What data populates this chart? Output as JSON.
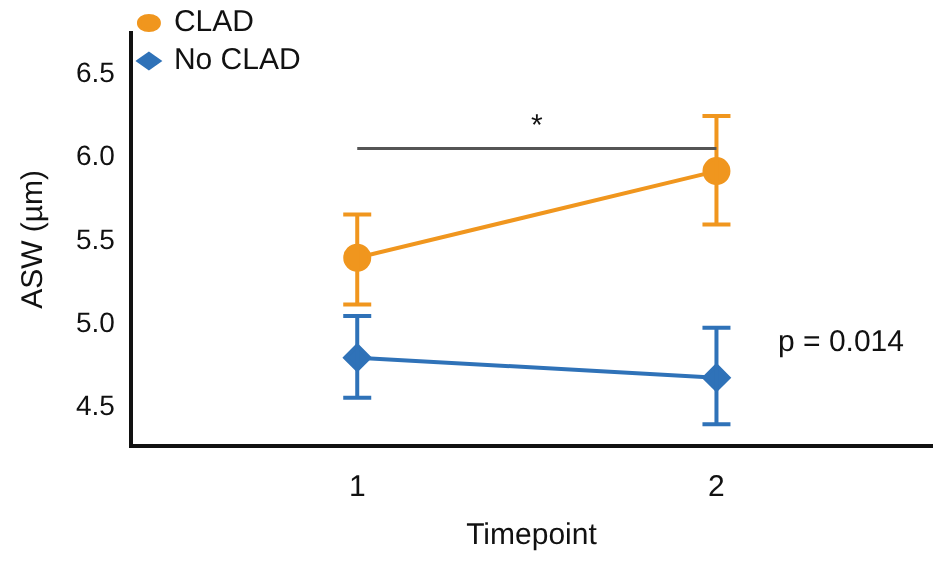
{
  "chart_data": {
    "type": "line",
    "xlabel": "Timepoint",
    "ylabel": "ASW (µm)",
    "x": [
      1,
      2
    ],
    "xlim": [
      0.37,
      2.6
    ],
    "xticks": [
      1,
      2
    ],
    "ylim": [
      4.27,
      6.75
    ],
    "yticks": [
      4.5,
      {
        "value": 5,
        "label": "5.0"
      },
      5.5,
      {
        "value": 6,
        "label": "6.0"
      },
      6.5
    ],
    "grid": false,
    "legend": "top left",
    "line_style": "solid",
    "series": [
      {
        "name": "CLAD",
        "color": "#f0961e",
        "marker": "circle",
        "values": [
          5.4,
          5.92
        ],
        "errors": [
          [
            5.12,
            5.66
          ],
          [
            5.6,
            6.25
          ]
        ]
      },
      {
        "name": "No CLAD",
        "color": "#2f72b8",
        "marker": "diamond",
        "values": [
          4.8,
          4.68
        ],
        "errors": [
          [
            4.56,
            5.05
          ],
          [
            4.4,
            4.98
          ]
        ]
      }
    ],
    "annotations": [
      "*",
      "p = 0.014"
    ]
  }
}
